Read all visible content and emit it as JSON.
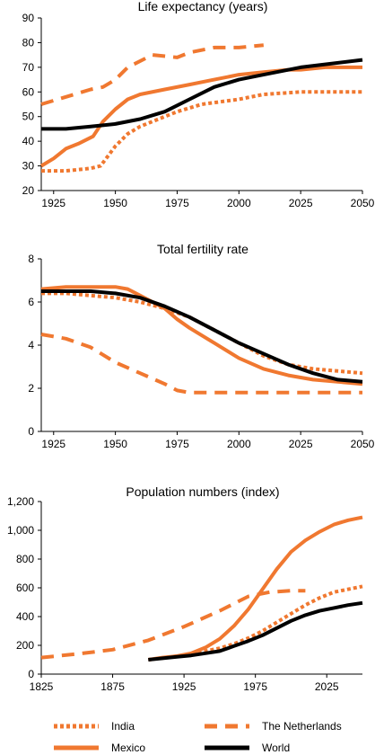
{
  "colors": {
    "orange": "#F07830",
    "black": "#000000"
  },
  "legend": [
    {
      "name": "India",
      "style": "dotted",
      "color": "#F07830"
    },
    {
      "name": "The Netherlands",
      "style": "dashed",
      "color": "#F07830"
    },
    {
      "name": "Mexico",
      "style": "solid",
      "color": "#F07830"
    },
    {
      "name": "World",
      "style": "solid",
      "color": "#000000"
    }
  ],
  "chart_data": [
    {
      "type": "line",
      "title": "Life expectancy  (years)",
      "xlabel": "",
      "ylabel": "",
      "xlim": [
        1920,
        2050
      ],
      "ylim": [
        20,
        90
      ],
      "xticks": [
        1925,
        1950,
        1975,
        2000,
        2025,
        2050
      ],
      "yticks": [
        20,
        30,
        40,
        50,
        60,
        70,
        80,
        90
      ],
      "series": [
        {
          "name": "India",
          "x": [
            1920,
            1930,
            1940,
            1944,
            1950,
            1955,
            1960,
            1965,
            1975,
            1985,
            2000,
            2010,
            2025,
            2050
          ],
          "y": [
            28,
            28,
            29,
            30,
            38,
            43,
            46,
            48,
            52,
            55,
            57,
            59,
            60,
            60
          ]
        },
        {
          "name": "The Netherlands",
          "x": [
            1920,
            1930,
            1940,
            1945,
            1950,
            1955,
            1965,
            1975,
            1980,
            1990,
            2000,
            2010
          ],
          "y": [
            55,
            58,
            61,
            62,
            65,
            70,
            75,
            74,
            76,
            78,
            78,
            79
          ]
        },
        {
          "name": "Mexico",
          "x": [
            1920,
            1925,
            1930,
            1935,
            1941,
            1945,
            1950,
            1955,
            1960,
            1970,
            1980,
            1990,
            2000,
            2010,
            2020,
            2025,
            2035,
            2050
          ],
          "y": [
            30,
            33,
            37,
            39,
            42,
            48,
            53,
            57,
            59,
            61,
            63,
            65,
            67,
            68,
            69,
            69,
            70,
            70
          ]
        },
        {
          "name": "World",
          "x": [
            1920,
            1930,
            1940,
            1950,
            1960,
            1970,
            1980,
            1990,
            2000,
            2010,
            2025,
            2050
          ],
          "y": [
            45,
            45,
            46,
            47,
            49,
            52,
            57,
            62,
            65,
            67,
            70,
            73
          ]
        }
      ]
    },
    {
      "type": "line",
      "title": "Total fertility rate",
      "xlabel": "",
      "ylabel": "",
      "xlim": [
        1920,
        2050
      ],
      "ylim": [
        0,
        8
      ],
      "xticks": [
        1925,
        1950,
        1975,
        2000,
        2025,
        2050
      ],
      "yticks": [
        0,
        2,
        4,
        6,
        8
      ],
      "series": [
        {
          "name": "India",
          "x": [
            1920,
            1930,
            1940,
            1950,
            1960,
            1970,
            1980,
            1990,
            2000,
            2010,
            2020,
            2030,
            2040,
            2050
          ],
          "y": [
            6.4,
            6.4,
            6.3,
            6.2,
            6.0,
            5.7,
            5.3,
            4.7,
            4.1,
            3.5,
            3.1,
            2.9,
            2.8,
            2.7
          ]
        },
        {
          "name": "The Netherlands",
          "x": [
            1920,
            1930,
            1940,
            1950,
            1960,
            1970,
            1975,
            1980,
            2000,
            2025,
            2050
          ],
          "y": [
            4.5,
            4.3,
            3.9,
            3.2,
            2.7,
            2.2,
            1.9,
            1.8,
            1.8,
            1.8,
            1.8
          ]
        },
        {
          "name": "Mexico",
          "x": [
            1920,
            1930,
            1940,
            1950,
            1955,
            1960,
            1970,
            1975,
            1980,
            1990,
            2000,
            2010,
            2020,
            2030,
            2040,
            2050
          ],
          "y": [
            6.6,
            6.7,
            6.7,
            6.7,
            6.6,
            6.3,
            5.7,
            5.2,
            4.8,
            4.1,
            3.4,
            2.9,
            2.6,
            2.4,
            2.3,
            2.2
          ]
        },
        {
          "name": "World",
          "x": [
            1920,
            1930,
            1940,
            1950,
            1960,
            1970,
            1980,
            1990,
            2000,
            2010,
            2020,
            2030,
            2040,
            2050
          ],
          "y": [
            6.5,
            6.5,
            6.5,
            6.4,
            6.2,
            5.8,
            5.3,
            4.7,
            4.1,
            3.6,
            3.1,
            2.7,
            2.4,
            2.3
          ]
        }
      ]
    },
    {
      "type": "line",
      "title": "Population numbers (index)",
      "xlabel": "",
      "ylabel": "",
      "xlim": [
        1825,
        2050
      ],
      "ylim": [
        0,
        1200
      ],
      "xticks": [
        1825,
        1875,
        1925,
        1975,
        2025
      ],
      "yticks": [
        0,
        200,
        400,
        600,
        800,
        "1,000",
        "1,200"
      ],
      "series": [
        {
          "name": "India",
          "x": [
            1900,
            1910,
            1920,
            1930,
            1940,
            1950,
            1960,
            1970,
            1980,
            1990,
            2000,
            2010,
            2020,
            2030,
            2040,
            2050
          ],
          "y": [
            100,
            112,
            125,
            140,
            160,
            180,
            210,
            250,
            300,
            360,
            420,
            480,
            530,
            570,
            590,
            610
          ]
        },
        {
          "name": "The Netherlands",
          "x": [
            1825,
            1850,
            1875,
            1900,
            1925,
            1950,
            1970,
            1985,
            2000,
            2010
          ],
          "y": [
            115,
            140,
            170,
            235,
            330,
            440,
            540,
            570,
            580,
            580
          ]
        },
        {
          "name": "Mexico",
          "x": [
            1900,
            1910,
            1920,
            1930,
            1940,
            1950,
            1960,
            1970,
            1980,
            1990,
            2000,
            2010,
            2020,
            2030,
            2040,
            2050
          ],
          "y": [
            100,
            115,
            125,
            145,
            185,
            245,
            335,
            450,
            590,
            730,
            850,
            930,
            990,
            1040,
            1070,
            1090
          ]
        },
        {
          "name": "World",
          "x": [
            1900,
            1910,
            1920,
            1930,
            1940,
            1950,
            1960,
            1970,
            1980,
            1990,
            2000,
            2010,
            2020,
            2030,
            2040,
            2050
          ],
          "y": [
            100,
            110,
            120,
            130,
            145,
            160,
            195,
            230,
            270,
            320,
            370,
            410,
            440,
            460,
            480,
            495
          ]
        }
      ]
    }
  ]
}
